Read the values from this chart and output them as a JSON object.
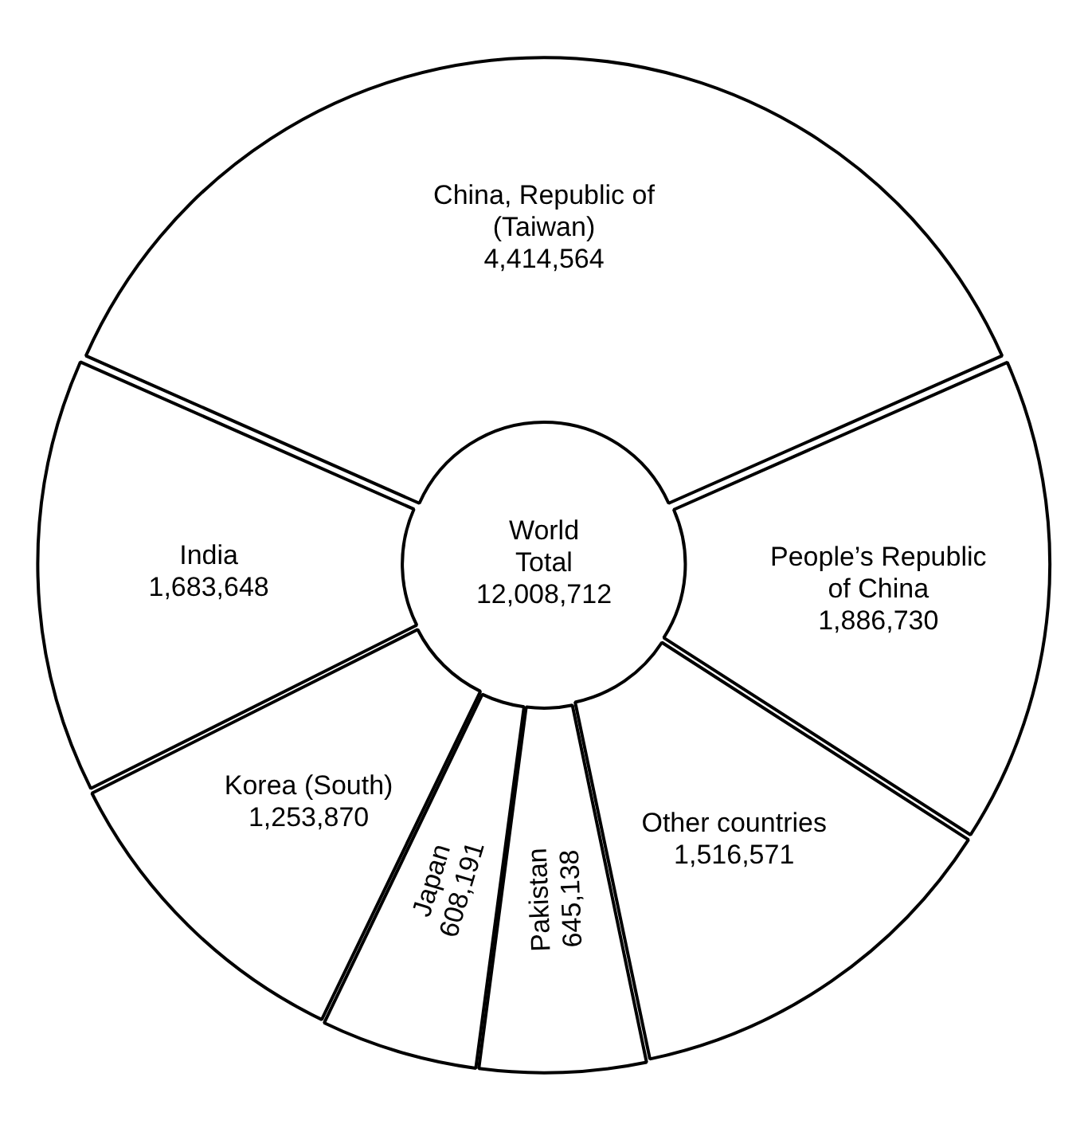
{
  "chart_data": {
    "type": "donut",
    "categories": [
      "China, Republic of (Taiwan)",
      "People’s Republic of China",
      "Other countries",
      "Pakistan",
      "Japan",
      "Korea (South)",
      "India"
    ],
    "values": [
      4414564,
      1886730,
      1516571,
      645138,
      608191,
      1253870,
      1683648
    ],
    "colors": [
      "#ffffff",
      "#ffffff",
      "#ffffff",
      "#ffffff",
      "#ffffff",
      "#ffffff",
      "#ffffff"
    ],
    "value_labels": [
      "4,414,564",
      "1,886,730",
      "1,516,571",
      "645,138",
      "608,191",
      "1,253,870",
      "1,683,648"
    ],
    "legend": false,
    "annotations": [
      "World Total 12,008,712"
    ]
  }
}
